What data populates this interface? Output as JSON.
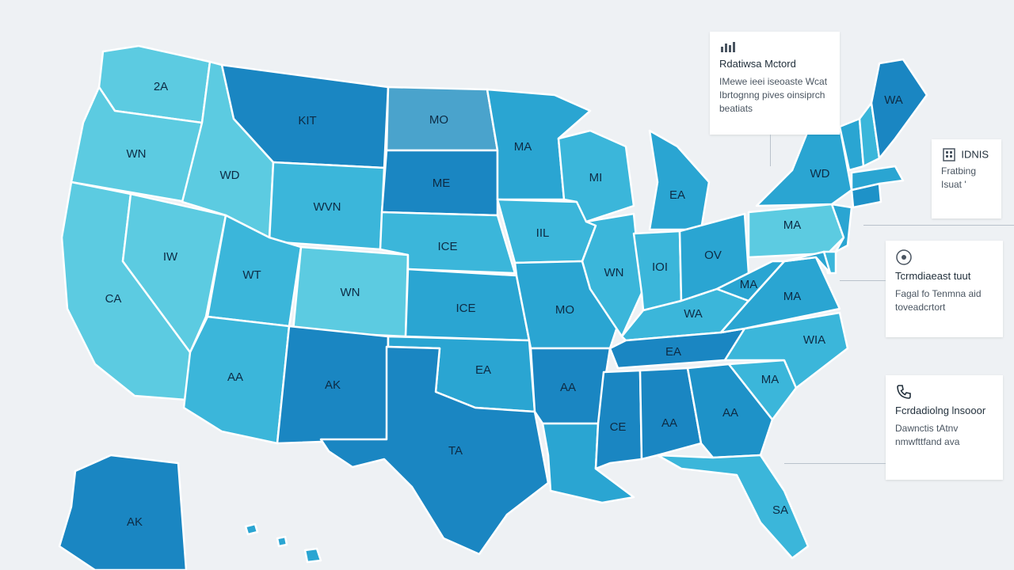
{
  "colors": {
    "background": "#eef1f4",
    "light": "#5ccbe1",
    "mid_light": "#3bb6da",
    "mid": "#2aa5d2",
    "mid_dark": "#1e92c8",
    "dark": "#1a86c2",
    "highlight": "#4aa3cc"
  },
  "map": {
    "states": [
      {
        "id": "WA",
        "label": "2A",
        "shade": "light"
      },
      {
        "id": "OR",
        "label": "WN",
        "shade": "light"
      },
      {
        "id": "CA",
        "label": "CA",
        "shade": "light"
      },
      {
        "id": "NV",
        "label": "IW",
        "shade": "light"
      },
      {
        "id": "ID",
        "label": "WD",
        "shade": "light"
      },
      {
        "id": "MT",
        "label": "KIT",
        "shade": "dark"
      },
      {
        "id": "WY",
        "label": "WVN",
        "shade": "mid_light"
      },
      {
        "id": "UT",
        "label": "WT",
        "shade": "mid_light"
      },
      {
        "id": "CO",
        "label": "WN",
        "shade": "light"
      },
      {
        "id": "AZ",
        "label": "AA",
        "shade": "mid_light"
      },
      {
        "id": "NM",
        "label": "AK",
        "shade": "dark"
      },
      {
        "id": "ND",
        "label": "MO",
        "shade": "highlight"
      },
      {
        "id": "SD",
        "label": "ME",
        "shade": "dark"
      },
      {
        "id": "NE",
        "label": "ICE",
        "shade": "mid_light"
      },
      {
        "id": "KS",
        "label": "ICE",
        "shade": "mid"
      },
      {
        "id": "OK",
        "label": "EA",
        "shade": "mid"
      },
      {
        "id": "TX",
        "label": "TA",
        "shade": "dark"
      },
      {
        "id": "MN",
        "label": "MA",
        "shade": "mid"
      },
      {
        "id": "IA",
        "label": "IIL",
        "shade": "mid_light"
      },
      {
        "id": "MO",
        "label": "MO",
        "shade": "mid"
      },
      {
        "id": "AR",
        "label": "AA",
        "shade": "dark"
      },
      {
        "id": "LA",
        "label": "",
        "shade": "mid"
      },
      {
        "id": "WI",
        "label": "MI",
        "shade": "mid_light"
      },
      {
        "id": "IL",
        "label": "WN",
        "shade": "mid_light"
      },
      {
        "id": "MI",
        "label": "EA",
        "shade": "mid"
      },
      {
        "id": "IN",
        "label": "IOI",
        "shade": "mid_light"
      },
      {
        "id": "OH",
        "label": "OV",
        "shade": "mid"
      },
      {
        "id": "KY",
        "label": "WA",
        "shade": "mid_light"
      },
      {
        "id": "TN",
        "label": "EA",
        "shade": "dark"
      },
      {
        "id": "MS",
        "label": "CE",
        "shade": "dark"
      },
      {
        "id": "AL",
        "label": "AA",
        "shade": "dark"
      },
      {
        "id": "GA",
        "label": "AA",
        "shade": "mid_dark"
      },
      {
        "id": "FL",
        "label": "SA",
        "shade": "mid_light"
      },
      {
        "id": "SC",
        "label": "MA",
        "shade": "mid_light"
      },
      {
        "id": "NC",
        "label": "WIA",
        "shade": "mid_light"
      },
      {
        "id": "VA",
        "label": "MA",
        "shade": "mid"
      },
      {
        "id": "WV",
        "label": "MA",
        "shade": "mid"
      },
      {
        "id": "PA",
        "label": "MA",
        "shade": "light"
      },
      {
        "id": "NY",
        "label": "WD",
        "shade": "mid"
      },
      {
        "id": "NJ",
        "label": "",
        "shade": "mid"
      },
      {
        "id": "DE",
        "label": "",
        "shade": "mid_light"
      },
      {
        "id": "MD",
        "label": "",
        "shade": "mid"
      },
      {
        "id": "CT",
        "label": "",
        "shade": "mid_dark"
      },
      {
        "id": "MA",
        "label": "",
        "shade": "mid"
      },
      {
        "id": "VT",
        "label": "",
        "shade": "mid"
      },
      {
        "id": "NH",
        "label": "",
        "shade": "mid_light"
      },
      {
        "id": "ME",
        "label": "WA",
        "shade": "dark"
      },
      {
        "id": "AK",
        "label": "AK",
        "shade": "dark"
      },
      {
        "id": "HI",
        "label": "",
        "shade": "mid"
      }
    ]
  },
  "cards": [
    {
      "icon": "chart-icon",
      "title": "Rdatiwsa Mctord",
      "lines": [
        "IMewe ieei iseoaste Wcat",
        "Ibrtognng pives oinsiprch",
        "beatiats"
      ]
    },
    {
      "icon": "building-icon",
      "title": "IDNIS",
      "lines": [
        "Fratbing",
        "Isuat '"
      ]
    },
    {
      "icon": "target-icon",
      "title": "Tcrmdiaeast tuut",
      "lines": [
        "Fagal fo Tenmna aid",
        "toveadcrtort"
      ]
    },
    {
      "icon": "phone-icon",
      "title": "Fcrdadiolng lnsooor",
      "lines": [
        "Dawnctis tAtnv",
        "nmwfttfand ava"
      ]
    }
  ]
}
